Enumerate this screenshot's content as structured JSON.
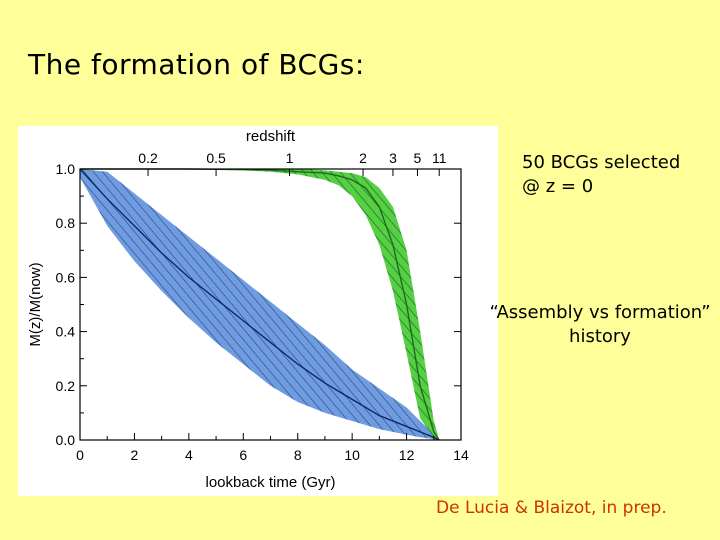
{
  "slide": {
    "title": "The formation of BCGs:",
    "notes": {
      "selection_line1": "50 BCGs selected",
      "selection_line2": "@ z = 0",
      "history_line1": "“Assembly vs formation”",
      "history_line2": "history"
    },
    "citation": "De Lucia & Blaizot, in prep."
  },
  "chart_data": {
    "type": "area",
    "xlabel": "lookback time (Gyr)",
    "ylabel": "M(z)/M(now)",
    "top_axis_label": "redshift",
    "xlim": [
      0,
      14
    ],
    "ylim": [
      0,
      1
    ],
    "x_ticks": [
      0,
      2,
      4,
      6,
      8,
      10,
      12,
      14
    ],
    "y_ticks": [
      0.0,
      0.2,
      0.4,
      0.6,
      0.8,
      1.0
    ],
    "x_tick_labels": [
      "0",
      "2",
      "4",
      "6",
      "8",
      "10",
      "12",
      "14"
    ],
    "y_tick_labels": [
      "0.0",
      "0.2",
      "0.4",
      "0.6",
      "0.8",
      "1.0"
    ],
    "redshift_ticks": [
      {
        "label": "0.2",
        "lookback": 2.5
      },
      {
        "label": "0.5",
        "lookback": 5.0
      },
      {
        "label": "1",
        "lookback": 7.7
      },
      {
        "label": "2",
        "lookback": 10.4
      },
      {
        "label": "3",
        "lookback": 11.5
      },
      {
        "label": "5",
        "lookback": 12.4
      },
      {
        "label": "11",
        "lookback": 13.2
      }
    ],
    "grid": false,
    "series": [
      {
        "color": "#6f9ce0",
        "line_color": "#0a2a66",
        "x": [
          0.0,
          1.0,
          2.0,
          3.0,
          4.0,
          5.0,
          6.0,
          7.0,
          8.0,
          9.0,
          10.0,
          11.0,
          12.0,
          12.5,
          13.0,
          13.2
        ],
        "lower": [
          0.97,
          0.79,
          0.66,
          0.55,
          0.45,
          0.36,
          0.28,
          0.2,
          0.14,
          0.1,
          0.07,
          0.04,
          0.02,
          0.01,
          0.003,
          0.0
        ],
        "median": [
          1.0,
          0.89,
          0.79,
          0.69,
          0.6,
          0.52,
          0.44,
          0.36,
          0.28,
          0.21,
          0.15,
          0.09,
          0.05,
          0.03,
          0.01,
          0.0
        ],
        "upper": [
          1.0,
          0.99,
          0.91,
          0.83,
          0.75,
          0.67,
          0.59,
          0.51,
          0.43,
          0.35,
          0.26,
          0.19,
          0.12,
          0.07,
          0.02,
          0.0
        ]
      },
      {
        "color": "#55d040",
        "line_color": "#1f6b1a",
        "x": [
          0.0,
          2.0,
          4.0,
          6.0,
          7.0,
          8.0,
          9.0,
          9.5,
          10.0,
          10.5,
          11.0,
          11.5,
          12.0,
          12.5,
          13.0,
          13.2
        ],
        "lower": [
          1.0,
          1.0,
          0.998,
          0.995,
          0.99,
          0.98,
          0.96,
          0.94,
          0.9,
          0.83,
          0.72,
          0.55,
          0.32,
          0.08,
          0.01,
          0.0
        ],
        "median": [
          1.0,
          1.0,
          1.0,
          0.998,
          0.996,
          0.99,
          0.985,
          0.975,
          0.96,
          0.93,
          0.86,
          0.72,
          0.5,
          0.2,
          0.03,
          0.0
        ],
        "upper": [
          1.0,
          1.0,
          1.0,
          1.0,
          1.0,
          1.0,
          0.995,
          0.99,
          0.985,
          0.97,
          0.93,
          0.86,
          0.7,
          0.4,
          0.07,
          0.0
        ]
      }
    ]
  }
}
